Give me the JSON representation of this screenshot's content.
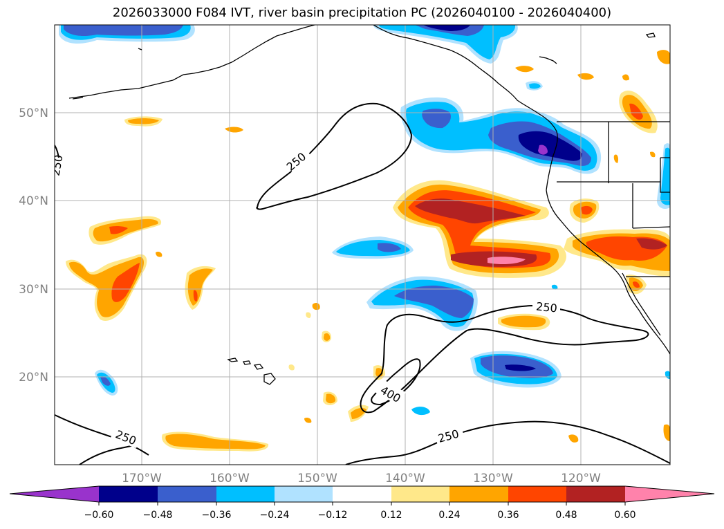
{
  "title": "2026033000 F084 IVT, river basin precipitation PC (2026040100 - 2026040400)",
  "map": {
    "lat_ticks": [
      "50°N",
      "40°N",
      "30°N",
      "20°N"
    ],
    "lon_ticks": [
      "170°W",
      "160°W",
      "150°W",
      "140°W",
      "130°W",
      "120°W"
    ],
    "contour_labels": [
      "250",
      "250",
      "250",
      "250",
      "400",
      "250"
    ]
  },
  "colorbar": {
    "ticks": [
      "−0.60",
      "−0.48",
      "−0.36",
      "−0.24",
      "−0.12",
      "0.12",
      "0.24",
      "0.36",
      "0.48",
      "0.60"
    ],
    "colors": [
      "#9933cc",
      "#00008b",
      "#3a5fcd",
      "#00bfff",
      "#b0e2ff",
      "#ffffff",
      "#ffe88a",
      "#ffa500",
      "#ff4500",
      "#b22222",
      "#ff82ab"
    ]
  },
  "colors": {
    "grid": "#b0b0b0",
    "coast": "#000000",
    "label_gray": "#808080"
  }
}
